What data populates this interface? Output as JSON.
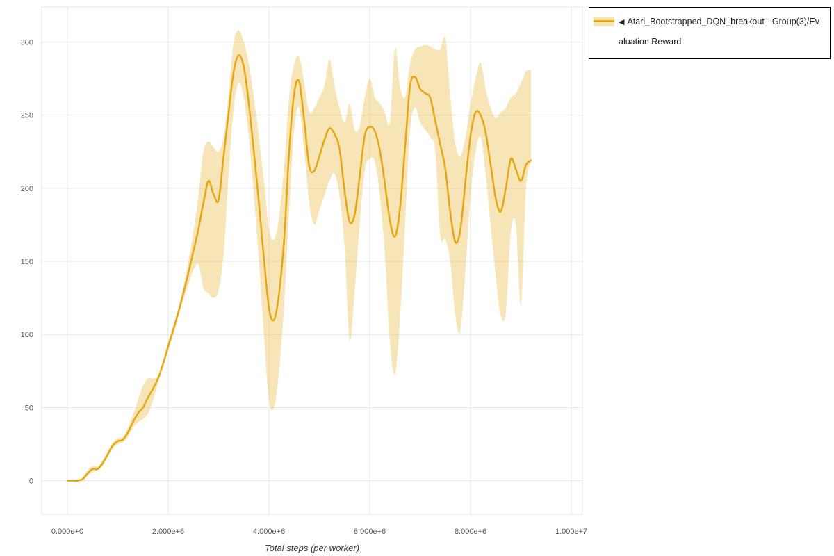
{
  "legend": {
    "collapse_icon": "◀",
    "label": "Atari_Bootstrapped_DQN_breakout - Group(3)/Evaluation Reward"
  },
  "colors": {
    "background": "#ffffff",
    "grid": "#e4e4e4",
    "tick_text": "#555555",
    "axis_title": "#333333",
    "legend_border": "#000000",
    "line": "#e5a813",
    "band": "#eec35f"
  },
  "chart_data": {
    "type": "line",
    "title": "",
    "xlabel": "Total steps (per worker)",
    "ylabel": "",
    "grid": true,
    "legend_position": "top-right",
    "x_range": [
      -510000,
      10220000
    ],
    "y_range": [
      -23,
      324
    ],
    "x_ticks": [
      {
        "v": 0,
        "label": "0.000e+0"
      },
      {
        "v": 2000000,
        "label": "2.000e+6"
      },
      {
        "v": 4000000,
        "label": "4.000e+6"
      },
      {
        "v": 6000000,
        "label": "6.000e+6"
      },
      {
        "v": 8000000,
        "label": "8.000e+6"
      },
      {
        "v": 10000000,
        "label": "1.000e+7"
      }
    ],
    "y_ticks": [
      {
        "v": 0,
        "label": "0"
      },
      {
        "v": 50,
        "label": "50"
      },
      {
        "v": 100,
        "label": "100"
      },
      {
        "v": 150,
        "label": "150"
      },
      {
        "v": 200,
        "label": "200"
      },
      {
        "v": 250,
        "label": "250"
      },
      {
        "v": 300,
        "label": "300"
      }
    ],
    "series": [
      {
        "name": "Atari_Bootstrapped_DQN_breakout - Group(3)/Evaluation Reward",
        "line_color": "#e5a813",
        "band_color": "#eec35f",
        "band_opacity": 0.45,
        "x_start": 0,
        "x_step": 100000,
        "mean": [
          0,
          0,
          0,
          1,
          5,
          8,
          8,
          12,
          18,
          24,
          27,
          28,
          33,
          40,
          46,
          50,
          57,
          63,
          70,
          80,
          92,
          103,
          115,
          128,
          142,
          157,
          172,
          190,
          205,
          196,
          192,
          222,
          252,
          280,
          291,
          283,
          258,
          225,
          190,
          152,
          118,
          110,
          128,
          165,
          225,
          265,
          273,
          246,
          215,
          212,
          222,
          233,
          241,
          237,
          227,
          198,
          177,
          182,
          208,
          236,
          242,
          239,
          226,
          203,
          178,
          167,
          186,
          228,
          270,
          276,
          268,
          265,
          262,
          246,
          230,
          213,
          183,
          163,
          172,
          205,
          236,
          252,
          250,
          238,
          216,
          193,
          184,
          200,
          220,
          213,
          205,
          216,
          219
        ],
        "upper": [
          0,
          0,
          1,
          2,
          7,
          10,
          10,
          14,
          20,
          26,
          29,
          30,
          36,
          45,
          55,
          65,
          70,
          70,
          72,
          82,
          95,
          106,
          118,
          132,
          150,
          170,
          195,
          225,
          232,
          228,
          225,
          235,
          265,
          300,
          308,
          300,
          285,
          262,
          235,
          205,
          172,
          165,
          180,
          215,
          262,
          285,
          290,
          272,
          252,
          255,
          262,
          270,
          288,
          270,
          255,
          245,
          258,
          240,
          242,
          262,
          275,
          262,
          258,
          252,
          245,
          296,
          270,
          262,
          285,
          295,
          297,
          298,
          297,
          295,
          295,
          302,
          262,
          230,
          222,
          235,
          258,
          275,
          286,
          268,
          255,
          248,
          252,
          255,
          262,
          265,
          272,
          280,
          281
        ],
        "lower": [
          0,
          0,
          0,
          0,
          3,
          6,
          7,
          10,
          16,
          22,
          25,
          26,
          30,
          36,
          40,
          42,
          46,
          55,
          67,
          78,
          89,
          100,
          112,
          124,
          134,
          144,
          148,
          132,
          128,
          125,
          130,
          155,
          210,
          255,
          272,
          262,
          235,
          195,
          150,
          100,
          55,
          50,
          75,
          120,
          185,
          240,
          255,
          225,
          190,
          175,
          185,
          195,
          205,
          210,
          195,
          160,
          96,
          130,
          175,
          212,
          220,
          218,
          195,
          155,
          95,
          73,
          110,
          175,
          240,
          255,
          245,
          240,
          235,
          225,
          168,
          165,
          150,
          112,
          103,
          145,
          195,
          225,
          235,
          210,
          175,
          140,
          113,
          115,
          170,
          175,
          120,
          200,
          218
        ]
      }
    ]
  }
}
